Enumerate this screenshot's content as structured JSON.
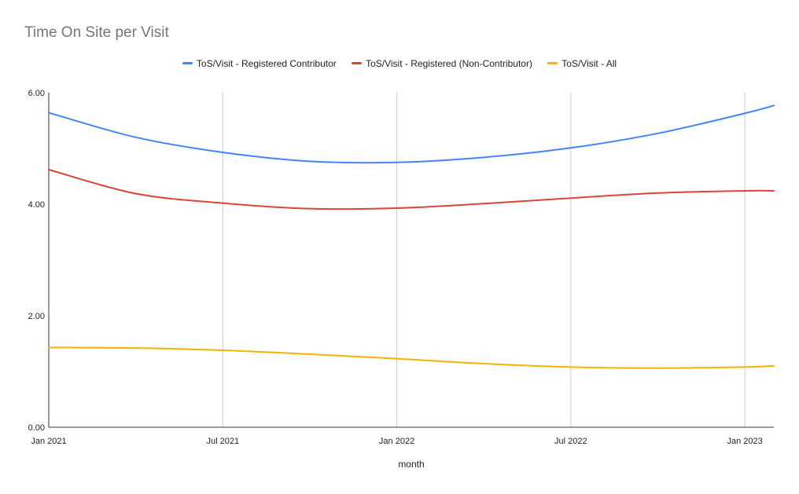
{
  "chart_data": {
    "type": "line",
    "title": "Time On Site per Visit",
    "xlabel": "month",
    "ylabel": "",
    "ylim": [
      0,
      6
    ],
    "y_ticks": [
      "0.00",
      "2.00",
      "4.00",
      "6.00"
    ],
    "x_ticks": [
      "Jan 2021",
      "Jul 2021",
      "Jan 2022",
      "Jul 2022",
      "Jan 2023"
    ],
    "x_tick_positions_months": [
      0,
      6,
      12,
      18,
      24
    ],
    "x_range_months": [
      0,
      25
    ],
    "legend_position": "top",
    "grid": {
      "vertical": true,
      "horizontal": false
    },
    "series": [
      {
        "name": "ToS/Visit - Registered Contributor",
        "color": "#4285f4",
        "x": [
          0,
          3,
          6,
          9,
          12,
          15,
          18,
          21,
          24,
          25
        ],
        "values": [
          5.64,
          5.2,
          4.93,
          4.77,
          4.75,
          4.84,
          5.01,
          5.27,
          5.63,
          5.77
        ]
      },
      {
        "name": "ToS/Visit - Registered (Non-Contributor)",
        "color": "#db4437",
        "x": [
          0,
          3,
          6,
          9,
          12,
          15,
          18,
          21,
          24,
          25
        ],
        "values": [
          4.62,
          4.19,
          4.02,
          3.92,
          3.93,
          4.01,
          4.11,
          4.2,
          4.24,
          4.24
        ]
      },
      {
        "name": "ToS/Visit - All",
        "color": "#f4b400",
        "x": [
          0,
          3,
          6,
          9,
          12,
          15,
          18,
          21,
          24,
          25
        ],
        "values": [
          1.43,
          1.42,
          1.38,
          1.31,
          1.23,
          1.14,
          1.08,
          1.06,
          1.08,
          1.1
        ]
      }
    ]
  }
}
